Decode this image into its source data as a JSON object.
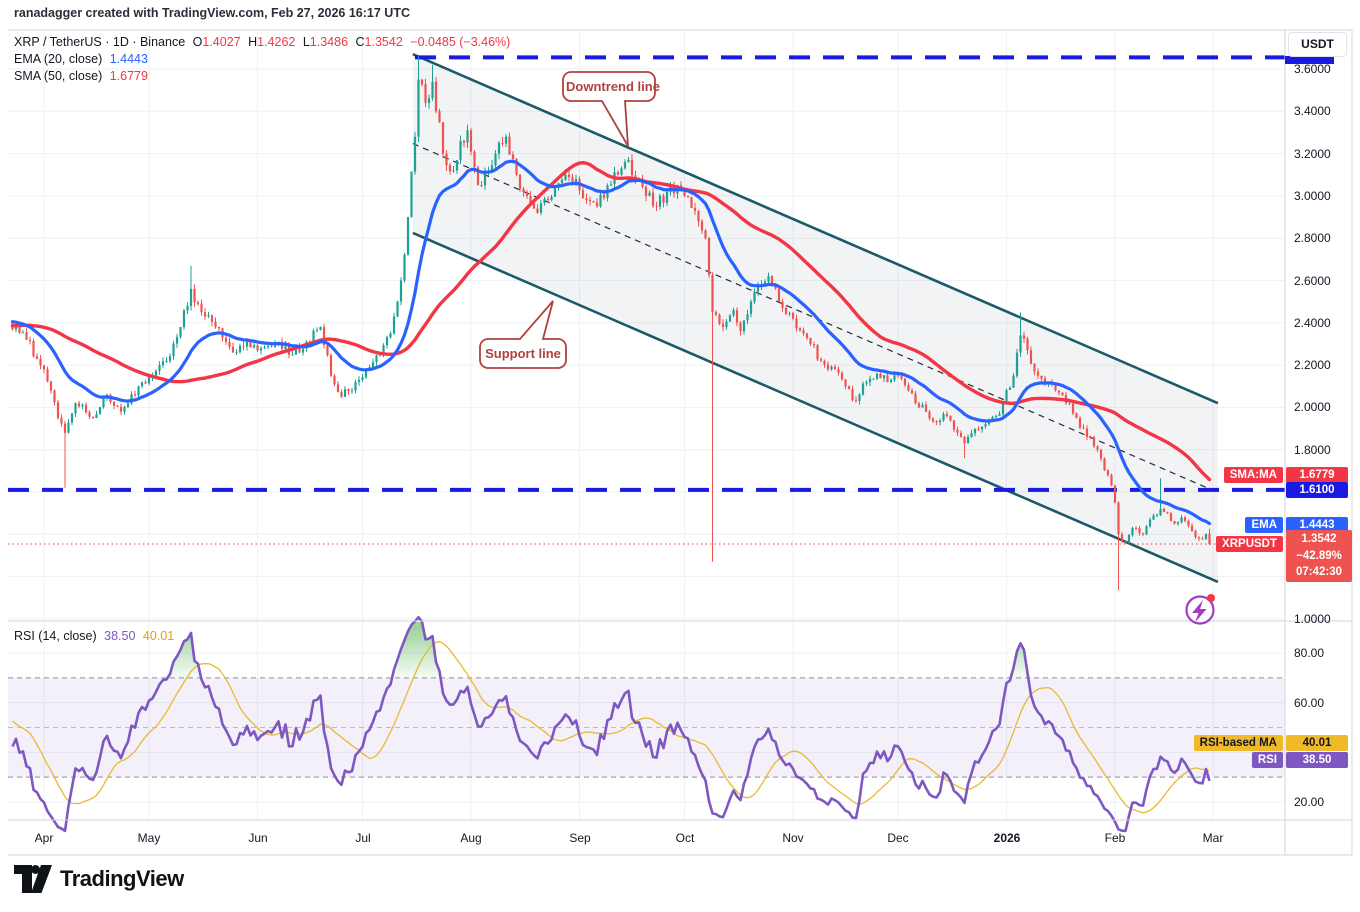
{
  "header": {
    "watermark": "ranadagger created with TradingView.com, Feb 27, 2026 16:17 UTC"
  },
  "symbol_legend": {
    "title": "XRP / TetherUS · 1D · Binance",
    "ohlc": [
      {
        "label": "O",
        "value": "1.4027"
      },
      {
        "label": "H",
        "value": "1.4262"
      },
      {
        "label": "L",
        "value": "1.3486"
      },
      {
        "label": "C",
        "value": "1.3542"
      }
    ],
    "change": "−0.0485 (−3.46%)"
  },
  "indicator_legends": [
    {
      "label": "EMA (20, close)",
      "value": "1.4443"
    },
    {
      "label": "SMA (50, close)",
      "value": "1.6779"
    }
  ],
  "rsi_legend": {
    "label": "RSI (14, close)",
    "value_rsi": "38.50",
    "value_ma": "40.01"
  },
  "price_axis": {
    "currency_button": "USDT"
  },
  "tags": {
    "sma_name": "SMA:MA",
    "sma_value": "1.6779",
    "level_value": "1.6100",
    "ema_name": "EMA",
    "ema_value": "1.4443",
    "symbol_name": "XRPUSDT",
    "price_value": "1.3542",
    "price_change": "−42.89%",
    "price_countdown": "07:42:30",
    "rsi_ma_name": "RSI-based MA",
    "rsi_ma_value": "40.01",
    "rsi_name": "RSI",
    "rsi_value": "38.50"
  },
  "logo": {
    "text": "TradingView"
  },
  "chart_data": {
    "type": "candlestick_with_rsi",
    "title": "XRP / TetherUS · 1D · Binance",
    "unit": "USDT",
    "ohlc_last": {
      "open": 1.4027,
      "high": 1.4262,
      "low": 1.3486,
      "close": 1.3542,
      "change": -0.0485,
      "change_pct": -3.46
    },
    "overlays": [
      {
        "name": "EMA 20",
        "value": 1.4443,
        "color": "#2962ff"
      },
      {
        "name": "SMA 50",
        "value": 1.6779,
        "color": "#f23645"
      }
    ],
    "levels": {
      "resistance_dashed": 3.655,
      "support_dashed": 1.61,
      "current_price": 1.3542
    },
    "channel": {
      "start_day": 105.4,
      "end_day": 335.4,
      "upper_start": 3.67,
      "upper_end": 2.02,
      "lower_start": 2.825,
      "lower_end": 1.175
    },
    "price_axis_ticks": [
      "3.6000",
      "3.4000",
      "3.2000",
      "3.0000",
      "2.8000",
      "2.6000",
      "2.4000",
      "2.2000",
      "2.0000",
      "1.8000",
      "1.0000"
    ],
    "rsi_axis_ticks": [
      "80.00",
      "60.00",
      "20.00"
    ],
    "months": [
      {
        "label": "Apr",
        "day": 0
      },
      {
        "label": "May",
        "day": 30
      },
      {
        "label": "Jun",
        "day": 61
      },
      {
        "label": "Jul",
        "day": 91
      },
      {
        "label": "Aug",
        "day": 122
      },
      {
        "label": "Sep",
        "day": 153
      },
      {
        "label": "Oct",
        "day": 183
      },
      {
        "label": "Nov",
        "day": 214
      },
      {
        "label": "Dec",
        "day": 244
      },
      {
        "label": "2026",
        "day": 275,
        "bold": true
      },
      {
        "label": "Feb",
        "day": 306
      },
      {
        "label": "Mar",
        "day": 334
      }
    ],
    "rsi": {
      "period": 14,
      "last": 38.5,
      "ma_last": 40.01,
      "overbought": 70,
      "oversold": 30,
      "mid": 50
    },
    "annotations": [
      {
        "text": "Downtrend line"
      },
      {
        "text": "Support line"
      }
    ],
    "price_keypoints": [
      [
        -60,
        2.3
      ],
      [
        -30,
        2.42
      ],
      [
        -10,
        2.4
      ],
      [
        -5,
        2.32
      ],
      [
        0,
        2.18
      ],
      [
        4,
        1.95
      ],
      [
        6,
        1.88
      ],
      [
        9,
        2.02
      ],
      [
        14,
        1.95
      ],
      [
        18,
        2.06
      ],
      [
        22,
        1.98
      ],
      [
        27,
        2.1
      ],
      [
        31,
        2.15
      ],
      [
        35,
        2.22
      ],
      [
        39,
        2.38
      ],
      [
        42,
        2.56
      ],
      [
        45,
        2.45
      ],
      [
        49,
        2.38
      ],
      [
        54,
        2.26
      ],
      [
        58,
        2.31
      ],
      [
        62,
        2.28
      ],
      [
        67,
        2.31
      ],
      [
        71,
        2.25
      ],
      [
        75,
        2.31
      ],
      [
        79,
        2.38
      ],
      [
        82,
        2.15
      ],
      [
        85,
        2.05
      ],
      [
        89,
        2.12
      ],
      [
        92,
        2.18
      ],
      [
        96,
        2.25
      ],
      [
        99,
        2.35
      ],
      [
        102,
        2.6
      ],
      [
        104,
        2.9
      ],
      [
        106,
        3.28
      ],
      [
        107,
        3.55
      ],
      [
        109,
        3.44
      ],
      [
        111,
        3.54
      ],
      [
        114,
        3.2
      ],
      [
        117,
        3.12
      ],
      [
        119,
        3.26
      ],
      [
        121,
        3.31
      ],
      [
        124,
        3.05
      ],
      [
        127,
        3.12
      ],
      [
        129,
        3.2
      ],
      [
        132,
        3.28
      ],
      [
        135,
        3.1
      ],
      [
        138,
        3.0
      ],
      [
        141,
        2.92
      ],
      [
        144,
        2.98
      ],
      [
        147,
        3.06
      ],
      [
        149,
        3.1
      ],
      [
        152,
        3.08
      ],
      [
        155,
        2.98
      ],
      [
        158,
        2.95
      ],
      [
        161,
        3.05
      ],
      [
        164,
        3.1
      ],
      [
        167,
        3.17
      ],
      [
        169,
        3.08
      ],
      [
        172,
        3.0
      ],
      [
        175,
        2.95
      ],
      [
        178,
        3.02
      ],
      [
        181,
        3.05
      ],
      [
        183,
        3.0
      ],
      [
        187,
        2.88
      ],
      [
        189,
        2.8
      ],
      [
        191,
        2.45
      ],
      [
        194,
        2.38
      ],
      [
        197,
        2.46
      ],
      [
        199,
        2.36
      ],
      [
        202,
        2.5
      ],
      [
        205,
        2.58
      ],
      [
        207,
        2.62
      ],
      [
        210,
        2.5
      ],
      [
        214,
        2.42
      ],
      [
        217,
        2.35
      ],
      [
        219,
        2.3
      ],
      [
        222,
        2.22
      ],
      [
        226,
        2.18
      ],
      [
        229,
        2.1
      ],
      [
        232,
        2.03
      ],
      [
        235,
        2.12
      ],
      [
        238,
        2.16
      ],
      [
        241,
        2.12
      ],
      [
        244,
        2.15
      ],
      [
        247,
        2.08
      ],
      [
        249,
        2.02
      ],
      [
        252,
        1.98
      ],
      [
        255,
        1.93
      ],
      [
        258,
        1.96
      ],
      [
        261,
        1.88
      ],
      [
        263,
        1.83
      ],
      [
        266,
        1.9
      ],
      [
        269,
        1.92
      ],
      [
        272,
        1.96
      ],
      [
        274,
        2.02
      ],
      [
        277,
        2.15
      ],
      [
        279,
        2.34
      ],
      [
        281,
        2.27
      ],
      [
        284,
        2.15
      ],
      [
        287,
        2.12
      ],
      [
        289,
        2.08
      ],
      [
        292,
        2.02
      ],
      [
        295,
        1.95
      ],
      [
        298,
        1.86
      ],
      [
        301,
        1.8
      ],
      [
        304,
        1.68
      ],
      [
        306,
        1.55
      ],
      [
        307,
        1.4
      ],
      [
        309,
        1.36
      ],
      [
        311,
        1.43
      ],
      [
        314,
        1.4
      ],
      [
        316,
        1.47
      ],
      [
        319,
        1.52
      ],
      [
        321,
        1.5
      ],
      [
        323,
        1.45
      ],
      [
        325,
        1.48
      ],
      [
        327,
        1.44
      ],
      [
        330,
        1.38
      ],
      [
        332,
        1.4027
      ],
      [
        333,
        1.3542
      ]
    ],
    "wick_overrides": {
      "6": {
        "l": 1.62
      },
      "42": {
        "h": 2.67
      },
      "107": {
        "h": 3.66
      },
      "111": {
        "h": 3.62
      },
      "191": {
        "l": 1.27
      },
      "263": {
        "l": 1.76
      },
      "279": {
        "h": 2.45
      },
      "307": {
        "l": 1.136
      },
      "319": {
        "h": 1.665
      },
      "333": {
        "o": 1.4027,
        "h": 1.4262,
        "l": 1.3486,
        "c": 1.3542
      }
    }
  }
}
